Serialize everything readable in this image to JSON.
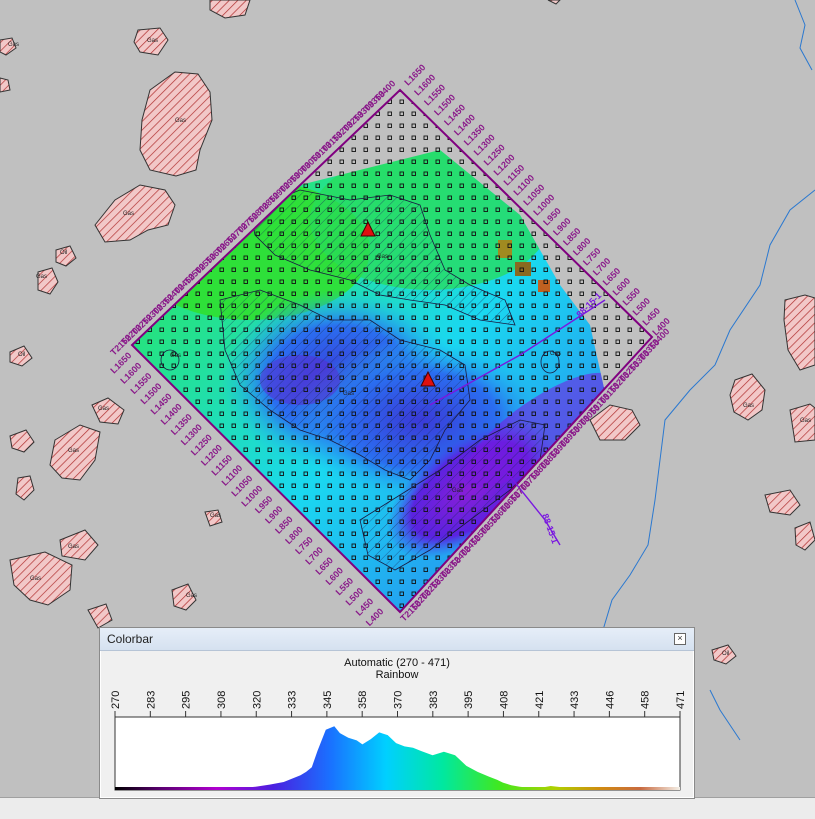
{
  "map": {
    "survey_label": "Gas",
    "oil_label": "Oil",
    "labels": {
      "gas": "Gas",
      "oil": "Oil"
    },
    "inline_left": [
      "L1650",
      "L1600",
      "L1550",
      "L1500",
      "L1450",
      "L1400",
      "L1350",
      "L1300",
      "L1250",
      "L1200",
      "L1150",
      "L1100",
      "L1050",
      "L1000",
      "L950",
      "L900",
      "L850",
      "L800",
      "L750",
      "L700",
      "L650",
      "L600",
      "L550",
      "L500",
      "L450",
      "L400"
    ],
    "inline_right": [
      "L1650",
      "L1600",
      "L1550",
      "L1500",
      "L1450",
      "L1400",
      "L1350",
      "L1300",
      "L1250",
      "L1200",
      "L1150",
      "L1100",
      "L1050",
      "L1000",
      "L950",
      "L900",
      "L850",
      "L800",
      "L750",
      "L700",
      "L650",
      "L600",
      "L550",
      "L500",
      "L450",
      "L400"
    ],
    "trace_top": [
      "T3400",
      "T3350",
      "T3300",
      "T3250",
      "T3200",
      "T3150",
      "T3100",
      "T3050",
      "T3000",
      "T2950",
      "T2900",
      "T2850",
      "T2800",
      "T2750",
      "T2700",
      "T2650",
      "T2600",
      "T2550",
      "T2500",
      "T2450",
      "T2400",
      "T2350",
      "T2300",
      "T2250",
      "T2200",
      "T2150"
    ],
    "trace_bottom": [
      "T3400",
      "T3350",
      "T3300",
      "T3250",
      "T3200",
      "T3150",
      "T3100",
      "T3050",
      "T3000",
      "T2950",
      "T2900",
      "T2850",
      "T2800",
      "T2750",
      "T2700",
      "T2650",
      "T2600",
      "T2550",
      "T2500",
      "T2450",
      "T2400",
      "T2350",
      "T2300",
      "T2250",
      "T2200",
      "T2150"
    ],
    "section_line_label": "88-15-1",
    "section_line_label2": "88-15-1"
  },
  "colorbar": {
    "title": "Colorbar",
    "close_icon": "close-icon",
    "scale_label": "Automatic (270 - 471)",
    "palette_label": "Rainbow",
    "ticks": [
      "270",
      "283",
      "295",
      "308",
      "320",
      "333",
      "345",
      "358",
      "370",
      "383",
      "395",
      "408",
      "421",
      "433",
      "446",
      "458",
      "471"
    ]
  },
  "chart_data": {
    "type": "area",
    "title": "Automatic (270 - 471)",
    "subtitle": "Rainbow",
    "xlim": [
      270,
      471
    ],
    "x": [
      270,
      275,
      280,
      283,
      290,
      295,
      300,
      305,
      308,
      312,
      316,
      320,
      325,
      330,
      333,
      336,
      338,
      340,
      342,
      345,
      348,
      350,
      353,
      356,
      358,
      361,
      364,
      367,
      370,
      373,
      376,
      379,
      383,
      387,
      391,
      395,
      399,
      403,
      406,
      408,
      411,
      414,
      418,
      421,
      425,
      429,
      433,
      440,
      446,
      452,
      458,
      465,
      471
    ],
    "values": [
      0,
      0,
      0,
      0,
      0,
      0,
      1,
      1,
      2,
      3,
      3,
      5,
      8,
      12,
      17,
      22,
      27,
      34,
      58,
      90,
      95,
      85,
      78,
      74,
      68,
      76,
      86,
      82,
      70,
      65,
      63,
      58,
      52,
      57,
      52,
      36,
      27,
      20,
      15,
      11,
      7,
      5,
      3,
      3,
      6,
      4,
      2,
      1,
      1,
      1,
      1,
      0,
      0
    ]
  }
}
